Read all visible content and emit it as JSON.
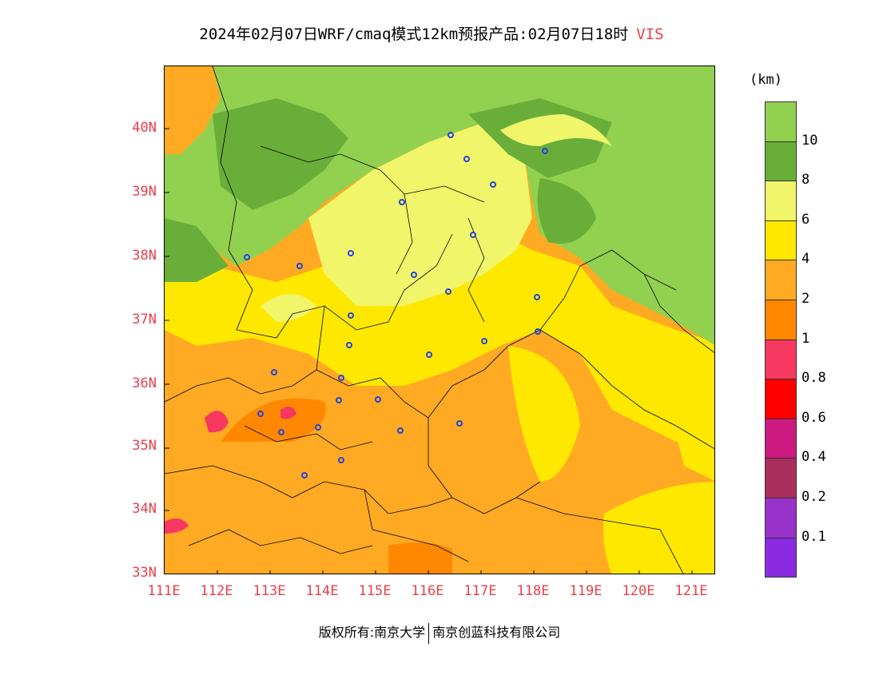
{
  "title": {
    "main": "2024年02月07日WRF/cmaq模式12km预报产品:02月07日18时",
    "variable": "VIS"
  },
  "axes": {
    "latitude_labels": [
      "40N",
      "39N",
      "38N",
      "37N",
      "36N",
      "35N",
      "34N",
      "33N"
    ],
    "longitude_labels": [
      "111E",
      "112E",
      "113E",
      "114E",
      "115E",
      "116E",
      "117E",
      "118E",
      "119E",
      "120E",
      "121E"
    ],
    "label_color": "#e8404a"
  },
  "colorbar": {
    "unit": "(km)",
    "levels": [
      {
        "label": "",
        "color": "#92d050"
      },
      {
        "label": "10",
        "color": "#6aae3a"
      },
      {
        "label": "8",
        "color": "#f0f56a"
      },
      {
        "label": "6",
        "color": "#ffe800"
      },
      {
        "label": "4",
        "color": "#ffaa22"
      },
      {
        "label": "2",
        "color": "#ff8800"
      },
      {
        "label": "1",
        "color": "#f73860"
      },
      {
        "label": "0.8",
        "color": "#ff0000"
      },
      {
        "label": "0.6",
        "color": "#cc1a80"
      },
      {
        "label": "0.4",
        "color": "#aa2e5c"
      },
      {
        "label": "0.2",
        "color": "#9933cc"
      },
      {
        "label": "0.1",
        "color": "#8a2be2"
      }
    ]
  },
  "footer": {
    "left": "版权所有:南京大学",
    "right": "南京创蓝科技有限公司"
  },
  "colors": {
    "green_light": "#92d050",
    "green_dark": "#6aae3a",
    "yellow_light": "#f0f56a",
    "yellow": "#ffe800",
    "orange_light": "#ffaa22",
    "orange": "#ff8800",
    "pink": "#f73860",
    "magenta": "#cc1a80",
    "city_marker": "#2244dd"
  }
}
